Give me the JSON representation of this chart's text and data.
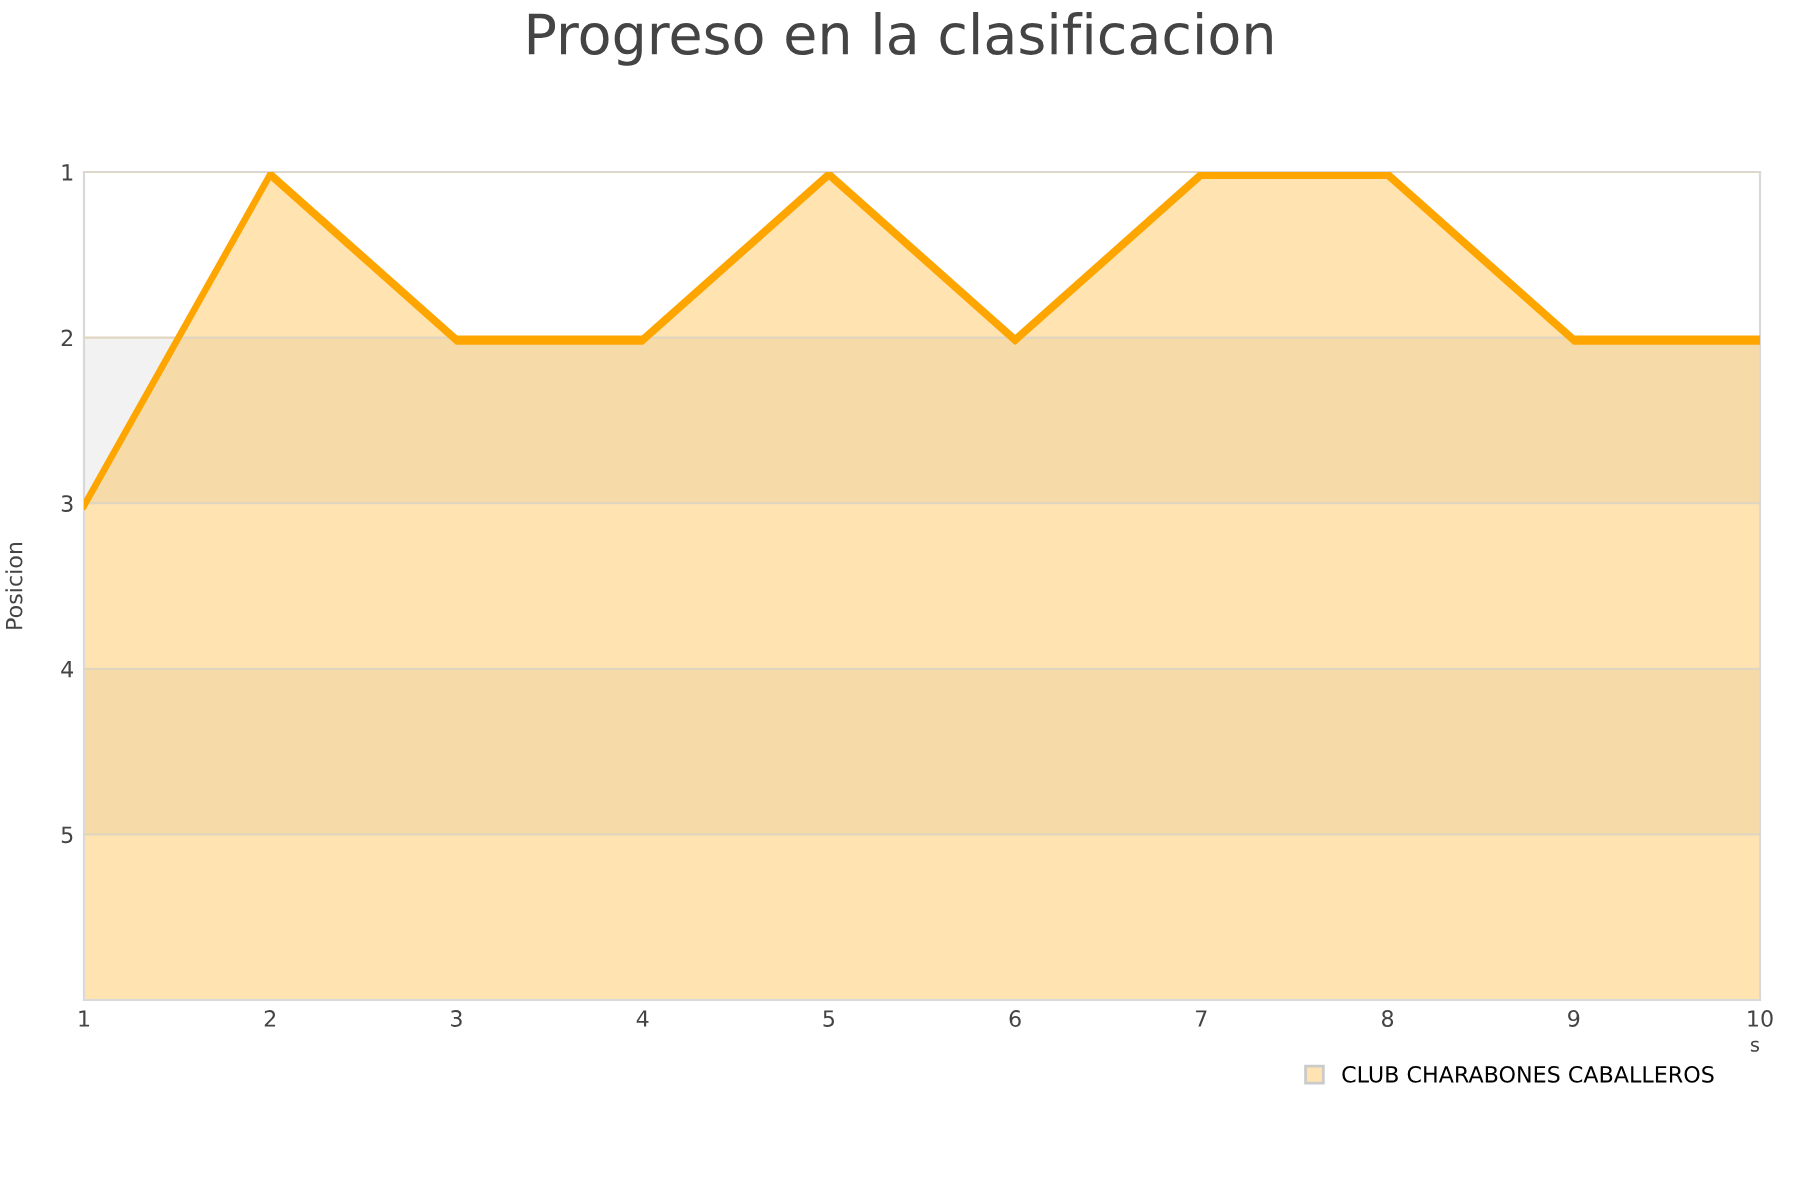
{
  "chart_data": {
    "type": "area",
    "title": "Progreso en la clasificacion",
    "ylabel": "Posicion",
    "xlabel": "s",
    "x": [
      1,
      2,
      3,
      4,
      5,
      6,
      7,
      8,
      9,
      10
    ],
    "series": [
      {
        "name": "CLUB CHARABONES CABALLEROS",
        "color": "#ffa500",
        "values": [
          3,
          1,
          2,
          2,
          1,
          2,
          1,
          1,
          2,
          2
        ]
      }
    ],
    "xlim": [
      1,
      10
    ],
    "xticks": [
      1,
      2,
      3,
      4,
      5,
      6,
      7,
      8,
      9,
      10
    ],
    "ylim": [
      6,
      1
    ],
    "yticks": [
      1,
      2,
      3,
      4,
      5
    ],
    "bands": [
      {
        "axis": "y",
        "from": 2,
        "to": 3,
        "color": "#f2f2f2"
      },
      {
        "axis": "y",
        "from": 4,
        "to": 5,
        "color": "#f2f2f2"
      }
    ],
    "grid": "y",
    "legend": "bottom right"
  }
}
